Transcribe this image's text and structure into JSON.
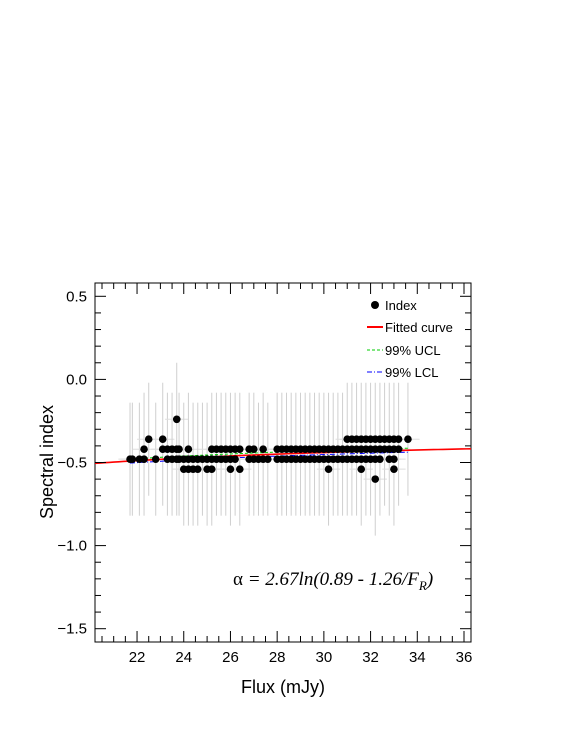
{
  "chart_data": {
    "type": "scatter",
    "xlabel": "Flux (mJy)",
    "ylabel": "Spectral index",
    "xlim": [
      20.2,
      36.3
    ],
    "ylim": [
      -1.58,
      0.58
    ],
    "x_ticks": [
      22,
      24,
      26,
      28,
      30,
      32,
      34,
      36
    ],
    "y_ticks": [
      0.5,
      0.0,
      -0.5,
      -1.0,
      -1.5
    ],
    "y_tick_labels": [
      "0.5",
      "0.0",
      "−0.5",
      "−1.0",
      "−1.5"
    ],
    "x_minor_step": 0.5,
    "y_minor_step": 0.1,
    "grid": false,
    "legend_position": "top-right",
    "legend": [
      {
        "label": "Index",
        "kind": "marker",
        "color": "#000000"
      },
      {
        "label": "Fitted curve",
        "kind": "line",
        "color": "#ff0000",
        "dash": "solid"
      },
      {
        "label": "99% UCL",
        "kind": "line",
        "color": "#00cc00",
        "dash": "dashed"
      },
      {
        "label": "99% LCL",
        "kind": "line",
        "color": "#0000ff",
        "dash": "dashdot"
      }
    ],
    "annotation": {
      "alpha": "α",
      "eq_main": " = 2.67ln(0.89 - 1.26/F",
      "eq_sub": "R",
      "eq_close": ")"
    },
    "fitted_curve": {
      "A": 2.67,
      "B": 0.89,
      "C": 1.26
    },
    "error_bar": {
      "y_err": 0.34,
      "x_err": 0.5
    },
    "points_x_columns": [
      21.7,
      21.8,
      22.1,
      22.3,
      22.5,
      22.8,
      23.1,
      23.3,
      23.5,
      23.7,
      23.8,
      24.0,
      24.2,
      24.4,
      24.6,
      24.8,
      25.0,
      25.2,
      25.4,
      25.6,
      25.8,
      26.0,
      26.2,
      26.4,
      26.8,
      27.0,
      27.2,
      27.4,
      27.6,
      28.0,
      28.2,
      28.4,
      28.6,
      28.8,
      29.0,
      29.2,
      29.4,
      29.6,
      29.8,
      30.0,
      30.2,
      30.4,
      30.6,
      30.8,
      31.0,
      31.2,
      31.4,
      31.6,
      31.8,
      32.0,
      32.2,
      32.4,
      32.6,
      32.8,
      33.0,
      33.2,
      33.6
    ],
    "points_y_columns": [
      [
        -0.48
      ],
      [
        -0.48
      ],
      [
        -0.48
      ],
      [
        -0.48,
        -0.42
      ],
      [
        -0.36
      ],
      [
        -0.48
      ],
      [
        -0.42,
        -0.36
      ],
      [
        -0.48,
        -0.42
      ],
      [
        -0.48,
        -0.42
      ],
      [
        -0.48,
        -0.42,
        -0.24
      ],
      [
        -0.48,
        -0.42
      ],
      [
        -0.54,
        -0.48
      ],
      [
        -0.54,
        -0.48,
        -0.42
      ],
      [
        -0.54,
        -0.48
      ],
      [
        -0.54,
        -0.48
      ],
      [
        -0.48
      ],
      [
        -0.54,
        -0.48
      ],
      [
        -0.54,
        -0.48,
        -0.42
      ],
      [
        -0.48,
        -0.42
      ],
      [
        -0.48,
        -0.42
      ],
      [
        -0.48,
        -0.42
      ],
      [
        -0.54,
        -0.48,
        -0.42
      ],
      [
        -0.48,
        -0.42
      ],
      [
        -0.54,
        -0.42
      ],
      [
        -0.48,
        -0.42
      ],
      [
        -0.48,
        -0.42
      ],
      [
        -0.48
      ],
      [
        -0.48,
        -0.42
      ],
      [
        -0.48
      ],
      [
        -0.48,
        -0.42
      ],
      [
        -0.48,
        -0.42
      ],
      [
        -0.48,
        -0.42
      ],
      [
        -0.48,
        -0.42
      ],
      [
        -0.48,
        -0.42
      ],
      [
        -0.48,
        -0.42
      ],
      [
        -0.48,
        -0.42
      ],
      [
        -0.48,
        -0.42
      ],
      [
        -0.48,
        -0.42
      ],
      [
        -0.48,
        -0.42
      ],
      [
        -0.48,
        -0.42
      ],
      [
        -0.54,
        -0.48,
        -0.42
      ],
      [
        -0.48,
        -0.42
      ],
      [
        -0.48,
        -0.42
      ],
      [
        -0.48,
        -0.42
      ],
      [
        -0.48,
        -0.42,
        -0.36
      ],
      [
        -0.48,
        -0.42,
        -0.36
      ],
      [
        -0.48,
        -0.42,
        -0.36
      ],
      [
        -0.54,
        -0.48,
        -0.42,
        -0.36
      ],
      [
        -0.48,
        -0.42,
        -0.36
      ],
      [
        -0.48,
        -0.42,
        -0.36
      ],
      [
        -0.6,
        -0.48,
        -0.42,
        -0.36
      ],
      [
        -0.48,
        -0.42,
        -0.36
      ],
      [
        -0.42,
        -0.36
      ],
      [
        -0.48,
        -0.42,
        -0.36
      ],
      [
        -0.54,
        -0.48,
        -0.42,
        -0.36
      ],
      [
        -0.42,
        -0.36
      ],
      [
        -0.36
      ]
    ]
  }
}
